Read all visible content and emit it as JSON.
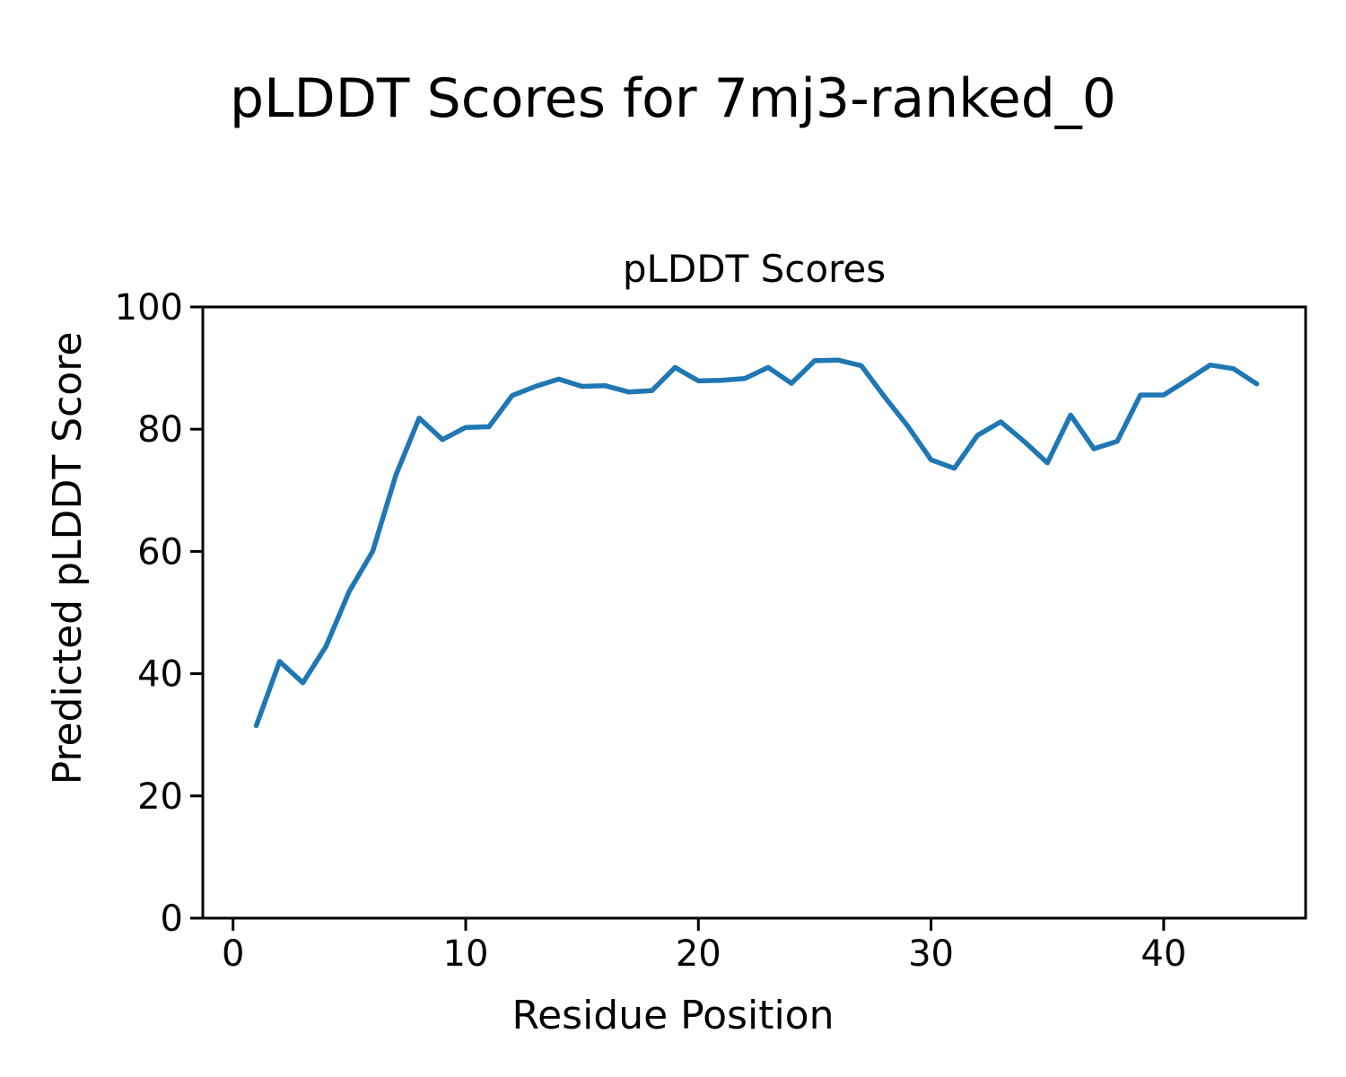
{
  "figure": {
    "suptitle": "pLDDT Scores for 7mj3-ranked_0",
    "axes_title": "pLDDT Scores",
    "xlabel": "Residue Position",
    "ylabel": "Predicted pLDDT Score"
  },
  "colors": {
    "line": "#1f77b4",
    "text": "#000000",
    "axes": "#000000",
    "background": "#ffffff"
  },
  "chart_data": {
    "type": "line",
    "title": "pLDDT Scores",
    "suptitle": "pLDDT Scores for 7mj3-ranked_0",
    "xlabel": "Residue Position",
    "ylabel": "Predicted pLDDT Score",
    "xlim": [
      -1.3,
      46.1
    ],
    "ylim": [
      0,
      100
    ],
    "xticks": [
      0,
      10,
      20,
      30,
      40
    ],
    "yticks": [
      0,
      20,
      40,
      60,
      80,
      100
    ],
    "grid": false,
    "legend_position": "none",
    "series": [
      {
        "name": "pLDDT",
        "color": "#1f77b4",
        "x": [
          1,
          2,
          3,
          4,
          5,
          6,
          7,
          8,
          9,
          10,
          11,
          12,
          13,
          14,
          15,
          16,
          17,
          18,
          19,
          20,
          21,
          22,
          23,
          24,
          25,
          26,
          27,
          28,
          29,
          30,
          31,
          32,
          33,
          34,
          35,
          36,
          37,
          38,
          39,
          40,
          41,
          42,
          43,
          44
        ],
        "y": [
          31.5,
          42.0,
          38.5,
          44.5,
          53.5,
          60.0,
          72.5,
          81.8,
          78.3,
          80.3,
          80.4,
          85.5,
          87.0,
          88.2,
          87.0,
          87.1,
          86.1,
          86.3,
          90.1,
          87.9,
          88.0,
          88.3,
          90.1,
          87.5,
          91.2,
          91.3,
          90.4,
          85.3,
          80.5,
          75.0,
          73.6,
          79.0,
          81.2,
          78.0,
          74.5,
          82.3,
          76.8,
          78.0,
          85.6,
          85.6,
          88.0,
          90.5,
          89.9,
          87.4
        ]
      }
    ]
  }
}
